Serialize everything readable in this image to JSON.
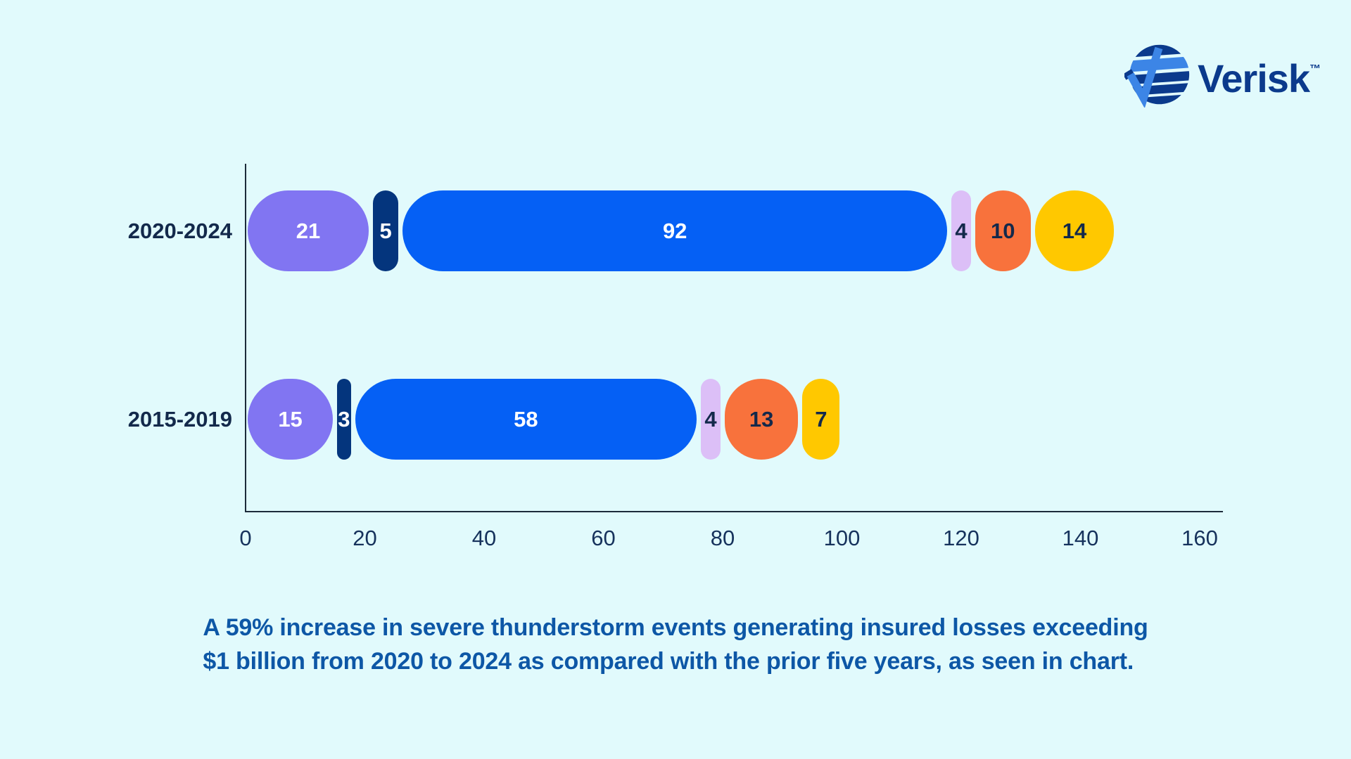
{
  "background_color": "#e1fafc",
  "logo": {
    "text": "Verisk",
    "tm": "™",
    "navy": "#0b3a8c",
    "light_blue": "#3c85e6"
  },
  "chart_data": {
    "type": "bar",
    "orientation": "horizontal",
    "stacked": true,
    "grid": false,
    "legend": false,
    "categories": [
      "2020-2024",
      "2015-2019"
    ],
    "series": [
      {
        "name": "segment-purple",
        "color": "#8175f2",
        "text_color": "#ffffff",
        "values": [
          21,
          15
        ]
      },
      {
        "name": "segment-navy",
        "color": "#04357d",
        "text_color": "#ffffff",
        "values": [
          5,
          3
        ]
      },
      {
        "name": "segment-blue",
        "color": "#0560f5",
        "text_color": "#ffffff",
        "values": [
          92,
          58
        ]
      },
      {
        "name": "segment-lavender",
        "color": "#dcbff7",
        "text_color": "#13294b",
        "values": [
          4,
          4
        ]
      },
      {
        "name": "segment-orange",
        "color": "#f8723c",
        "text_color": "#13294b",
        "values": [
          10,
          13
        ]
      },
      {
        "name": "segment-yellow",
        "color": "#ffc800",
        "text_color": "#13294b",
        "values": [
          14,
          7
        ]
      }
    ],
    "row_totals": [
      146,
      100
    ],
    "xlim": [
      0,
      160
    ],
    "x_ticks": [
      0,
      20,
      40,
      60,
      80,
      100,
      120,
      140,
      160
    ],
    "axis_color": "#1c2b3a",
    "tick_color": "#16325c",
    "category_label_color": "#13294b"
  },
  "caption": {
    "line1": "A 59% increase in severe thunderstorm events generating insured losses exceeding",
    "line2": "$1 billion from 2020 to 2024 as compared with the prior five years, as seen in chart.",
    "color": "#0d57a6"
  }
}
